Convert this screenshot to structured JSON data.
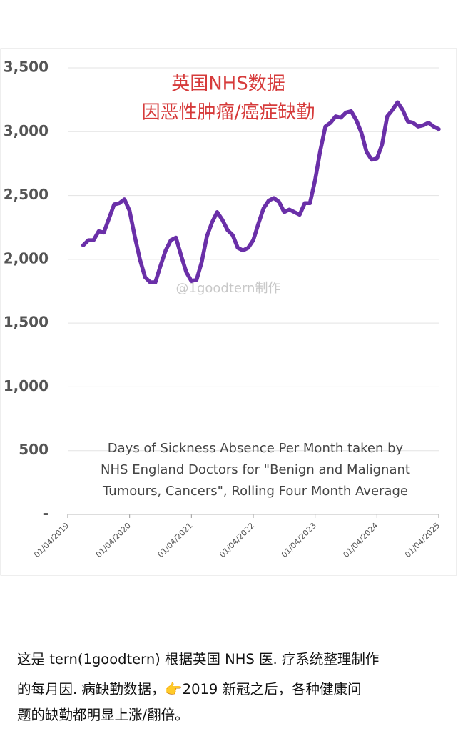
{
  "chart_data": {
    "type": "line",
    "title": [
      "英国NHS数据",
      "因恶性肿瘤/癌症缺勤"
    ],
    "watermark": "@1goodtern制作",
    "annotation": [
      "Days of Sickness Absence Per Month taken by",
      "NHS England Doctors for \"Benign and Malignant",
      "Tumours, Cancers\", Rolling Four Month Average"
    ],
    "x": [
      "01/07/2019",
      "01/08/2019",
      "01/09/2019",
      "01/10/2019",
      "01/11/2019",
      "01/12/2019",
      "01/01/2020",
      "01/02/2020",
      "01/03/2020",
      "01/04/2020",
      "01/05/2020",
      "01/06/2020",
      "01/07/2020",
      "01/08/2020",
      "01/09/2020",
      "01/10/2020",
      "01/11/2020",
      "01/12/2020",
      "01/01/2021",
      "01/02/2021",
      "01/03/2021",
      "01/04/2021",
      "01/05/2021",
      "01/06/2021",
      "01/07/2021",
      "01/08/2021",
      "01/09/2021",
      "01/10/2021",
      "01/11/2021",
      "01/12/2021",
      "01/01/2022",
      "01/02/2022",
      "01/03/2022",
      "01/04/2022",
      "01/05/2022",
      "01/06/2022",
      "01/07/2022",
      "01/08/2022",
      "01/09/2022",
      "01/10/2022",
      "01/11/2022",
      "01/12/2022",
      "01/01/2023",
      "01/02/2023",
      "01/03/2023",
      "01/04/2023",
      "01/05/2023",
      "01/06/2023",
      "01/07/2023",
      "01/08/2023",
      "01/09/2023",
      "01/10/2023",
      "01/11/2023",
      "01/12/2023",
      "01/01/2024",
      "01/02/2024",
      "01/03/2024",
      "01/04/2024",
      "01/05/2024",
      "01/06/2024",
      "01/07/2024",
      "01/08/2024",
      "01/09/2024",
      "01/10/2024",
      "01/11/2024",
      "01/12/2024",
      "01/01/2025",
      "01/02/2025",
      "01/03/2025",
      "01/04/2025"
    ],
    "series": [
      {
        "color": "#6a2fa8",
        "values": [
          2110,
          2150,
          2150,
          2220,
          2210,
          2320,
          2430,
          2440,
          2470,
          2380,
          2180,
          2000,
          1860,
          1820,
          1820,
          1950,
          2070,
          2150,
          2170,
          2030,
          1900,
          1830,
          1840,
          1980,
          2180,
          2290,
          2370,
          2310,
          2230,
          2190,
          2090,
          2070,
          2090,
          2150,
          2280,
          2400,
          2460,
          2480,
          2450,
          2370,
          2390,
          2370,
          2350,
          2440,
          2440,
          2620,
          2850,
          3040,
          3070,
          3120,
          3110,
          3150,
          3160,
          3090,
          2990,
          2840,
          2780,
          2790,
          2900,
          3120,
          3170,
          3230,
          3170,
          3080,
          3070,
          3040,
          3050,
          3070,
          3040,
          3020
        ]
      }
    ],
    "xlim": [
      "01/04/2019",
      "01/04/2025"
    ],
    "xticks": [
      "01/04/2019",
      "01/04/2020",
      "01/04/2021",
      "01/04/2022",
      "01/04/2023",
      "01/04/2024",
      "01/04/2025"
    ],
    "ylim": [
      0,
      3500
    ],
    "yticks": [
      {
        "value": 0,
        "label": "-"
      },
      500,
      {
        "value": 1000,
        "label": "1,000"
      },
      {
        "value": 1500,
        "label": "1,500"
      },
      {
        "value": 2000,
        "label": "2,000"
      },
      {
        "value": 2500,
        "label": "2,500"
      },
      {
        "value": 3000,
        "label": "3,000"
      },
      {
        "value": 3500,
        "label": "3,500"
      }
    ],
    "grid": true
  },
  "post": {
    "caption": [
      "这是 tern(1goodtern) 根据英国 NHS 医. 疗系统整理制作",
      "的每月因. 病缺勤数据，👉2019 新冠之后，各种健康问",
      "题的缺勤都明显上涨/翻倍。"
    ]
  }
}
